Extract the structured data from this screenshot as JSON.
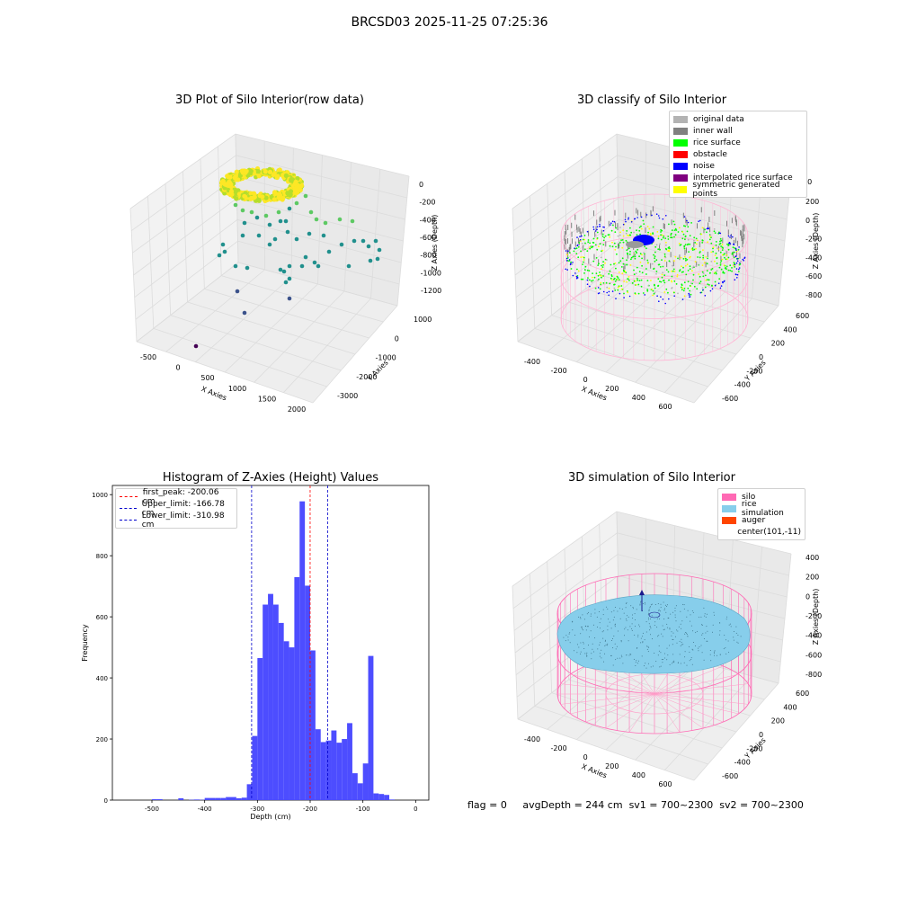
{
  "figure": {
    "suptitle": "BRCSD03 2025-11-25 07:25:36",
    "footer": {
      "flag": "flag = 0",
      "avg_depth": "avgDepth = 244 cm",
      "sv1": "sv1 = 700~2300",
      "sv2": "sv2 = 700~2300"
    }
  },
  "chart_data": [
    {
      "type": "scatter",
      "title": "3D Plot of Silo Interior(row data)",
      "xlabel": "X Axies",
      "ylabel": "Y Axies",
      "zlabel": "Z Axies (Depth)",
      "x_ticks": [
        "-500",
        "0",
        "500",
        "1000",
        "1500",
        "2000"
      ],
      "y_ticks": [
        "-3000",
        "-2000",
        "-1000",
        "0",
        "1000"
      ],
      "z_ticks": [
        "0",
        "-200",
        "-400",
        "-600",
        "-800",
        "-1000",
        "-1200"
      ],
      "colormap": [
        "#440154",
        "#3b528b",
        "#21908d",
        "#5dc963",
        "#fde725"
      ]
    },
    {
      "type": "scatter",
      "title": "3D classify of Silo Interior",
      "xlabel": "X Axies",
      "ylabel": "Y Axies",
      "zlabel": "Z Axies (Depth)",
      "x_ticks": [
        "-400",
        "-200",
        "0",
        "200",
        "400",
        "600"
      ],
      "y_ticks": [
        "-600",
        "-400",
        "-200",
        "0",
        "200",
        "400",
        "600"
      ],
      "z_ticks": [
        "200",
        "0",
        "-200",
        "-400",
        "-600",
        "-800"
      ],
      "z_ticks_top": "400",
      "legend": [
        {
          "label": "original data",
          "color": "#b3b3b3"
        },
        {
          "label": "inner wall",
          "color": "#808080"
        },
        {
          "label": "rice surface",
          "color": "#00ff00"
        },
        {
          "label": "obstacle",
          "color": "#ff0000"
        },
        {
          "label": "noise",
          "color": "#0000ff"
        },
        {
          "label": "interpolated rice surface",
          "color": "#800080"
        },
        {
          "label": "symmetric generated points",
          "color": "#ffff00"
        }
      ]
    },
    {
      "type": "bar",
      "title": "Histogram of Z-Axies (Height) Values",
      "xlabel": "Depth (cm)",
      "ylabel": "Frequency",
      "xlim": [
        -575,
        25
      ],
      "ylim": [
        0,
        1030
      ],
      "x_ticks": [
        -500,
        -400,
        -300,
        -200,
        -100,
        0
      ],
      "y_ticks": [
        0,
        200,
        400,
        600,
        800,
        1000
      ],
      "bin_width": 10,
      "bar_color": "#4d4dff",
      "bins": [
        {
          "left": -500,
          "count": 3
        },
        {
          "left": -490,
          "count": 3
        },
        {
          "left": -480,
          "count": 0
        },
        {
          "left": -470,
          "count": 0
        },
        {
          "left": -460,
          "count": 0
        },
        {
          "left": -450,
          "count": 6
        },
        {
          "left": -440,
          "count": 0
        },
        {
          "left": -430,
          "count": 1
        },
        {
          "left": -420,
          "count": 2
        },
        {
          "left": -410,
          "count": 1
        },
        {
          "left": -400,
          "count": 7
        },
        {
          "left": -390,
          "count": 7
        },
        {
          "left": -380,
          "count": 7
        },
        {
          "left": -370,
          "count": 7
        },
        {
          "left": -360,
          "count": 10
        },
        {
          "left": -350,
          "count": 10
        },
        {
          "left": -340,
          "count": 6
        },
        {
          "left": -330,
          "count": 8
        },
        {
          "left": -320,
          "count": 52
        },
        {
          "left": -310,
          "count": 210
        },
        {
          "left": -300,
          "count": 465
        },
        {
          "left": -290,
          "count": 640
        },
        {
          "left": -280,
          "count": 675
        },
        {
          "left": -270,
          "count": 640
        },
        {
          "left": -260,
          "count": 580
        },
        {
          "left": -250,
          "count": 520
        },
        {
          "left": -240,
          "count": 500
        },
        {
          "left": -230,
          "count": 730
        },
        {
          "left": -220,
          "count": 978
        },
        {
          "left": -210,
          "count": 702
        },
        {
          "left": -200,
          "count": 490
        },
        {
          "left": -190,
          "count": 232
        },
        {
          "left": -180,
          "count": 190
        },
        {
          "left": -170,
          "count": 195
        },
        {
          "left": -160,
          "count": 228
        },
        {
          "left": -150,
          "count": 188
        },
        {
          "left": -140,
          "count": 200
        },
        {
          "left": -130,
          "count": 252
        },
        {
          "left": -120,
          "count": 88
        },
        {
          "left": -110,
          "count": 55
        },
        {
          "left": -100,
          "count": 120
        },
        {
          "left": -90,
          "count": 472
        },
        {
          "left": -80,
          "count": 22
        },
        {
          "left": -70,
          "count": 20
        },
        {
          "left": -60,
          "count": 17
        },
        {
          "left": -50,
          "count": 2
        }
      ],
      "vlines": [
        {
          "label": "first_peak: -200.06 cm",
          "x": -200.06,
          "color": "#ff0000"
        },
        {
          "label": "Upper_limit: -166.78 cm",
          "x": -166.78,
          "color": "#0000cc"
        },
        {
          "label": "Lower_limit: -310.98 cm",
          "x": -310.98,
          "color": "#0000cc"
        }
      ]
    },
    {
      "type": "scatter",
      "title": "3D simulation of Silo Interior",
      "xlabel": "X Axies",
      "ylabel": "Y Axies",
      "zlabel": "Z Axies (Depth)",
      "x_ticks": [
        "-400",
        "-200",
        "0",
        "200",
        "400",
        "600"
      ],
      "y_ticks": [
        "-600",
        "-400",
        "-200",
        "0",
        "200",
        "400",
        "600"
      ],
      "z_ticks": [
        "400",
        "200",
        "0",
        "-200",
        "-400",
        "-600",
        "-800"
      ],
      "legend": [
        {
          "label": "silo",
          "color": "#ff69b4"
        },
        {
          "label": "rice simulation",
          "color": "#87ceeb"
        },
        {
          "label": "auger",
          "color": "#ff4500"
        },
        {
          "label": "center(101,-11)",
          "color": ""
        }
      ]
    }
  ]
}
